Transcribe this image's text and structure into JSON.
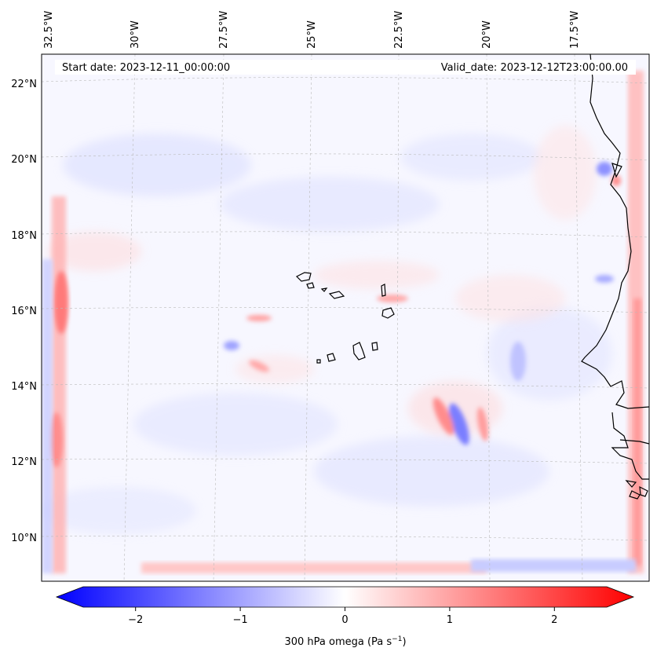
{
  "map": {
    "start_date": "Start date: 2023-12-11_00:00:00",
    "valid_date": "Valid_date: 2023-12-12T23:00:00.00",
    "lon_labels": [
      "32.5°W",
      "30°W",
      "27.5°W",
      "25°W",
      "22.5°W",
      "20°W",
      "17.5°W"
    ],
    "lat_labels": [
      "22°N",
      "20°N",
      "18°N",
      "16°N",
      "14°N",
      "12°N",
      "10°N"
    ],
    "field": "300 hPa omega",
    "colors": {
      "negative": "#0000ff",
      "zero": "#ffffff",
      "positive": "#ff0000",
      "coast": "#000000",
      "grid": "#bbbbbb"
    }
  },
  "colorbar": {
    "label_text": "300 hPa omega (Pa s",
    "label_sup": "−1",
    "label_close": ")",
    "ticks": [
      "−2",
      "−1",
      "0",
      "1",
      "2"
    ],
    "tick_values": [
      -2,
      -1,
      0,
      1,
      2
    ],
    "range": [
      -2.6,
      2.6
    ]
  }
}
